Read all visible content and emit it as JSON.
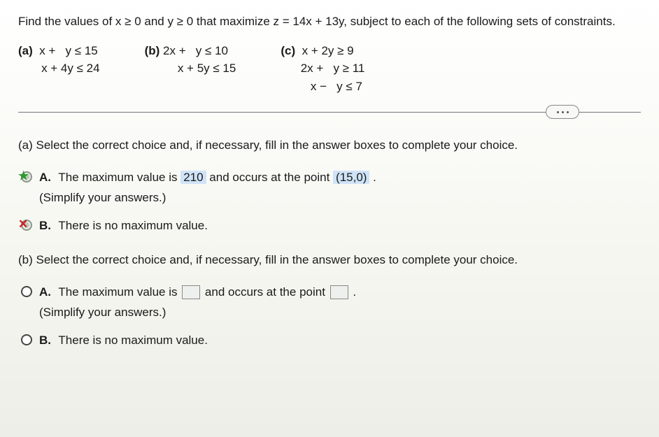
{
  "problem": "Find the values of x ≥ 0 and y ≥ 0 that maximize z = 14x + 13y, subject to each of the following sets of constraints.",
  "constraints": {
    "a": {
      "label": "(a)",
      "lines": [
        "x +   y ≤ 15",
        "x + 4y ≤ 24"
      ]
    },
    "b": {
      "label": "(b)",
      "lines": [
        "2x +   y ≤ 10",
        "  x + 5y ≤ 15"
      ]
    },
    "c": {
      "label": "(c)",
      "lines": [
        "x + 2y ≥ 9",
        "2x +   y ≥ 11",
        "  x −   y ≤ 7"
      ]
    }
  },
  "partA": {
    "instruction": "(a) Select the correct choice and, if necessary, fill in the answer boxes to complete your choice.",
    "choiceA": {
      "letter": "A.",
      "pre": "The maximum value is ",
      "value": "210",
      "mid": " and occurs at the point ",
      "point": "(15,0)",
      "post": " .",
      "simplify": "(Simplify your answers.)"
    },
    "choiceB": {
      "letter": "B.",
      "text": "There is no maximum value."
    }
  },
  "partB": {
    "instruction": "(b) Select the correct choice and, if necessary, fill in the answer boxes to complete your choice.",
    "choiceA": {
      "letter": "A.",
      "pre": "The maximum value is ",
      "mid": " and occurs at the point ",
      "post": " .",
      "simplify": "(Simplify your answers.)"
    },
    "choiceB": {
      "letter": "B.",
      "text": "There is no maximum value."
    }
  },
  "colors": {
    "highlight": "#cfe3f7",
    "correct": "#2f9a2f",
    "wrong": "#cc2020"
  }
}
